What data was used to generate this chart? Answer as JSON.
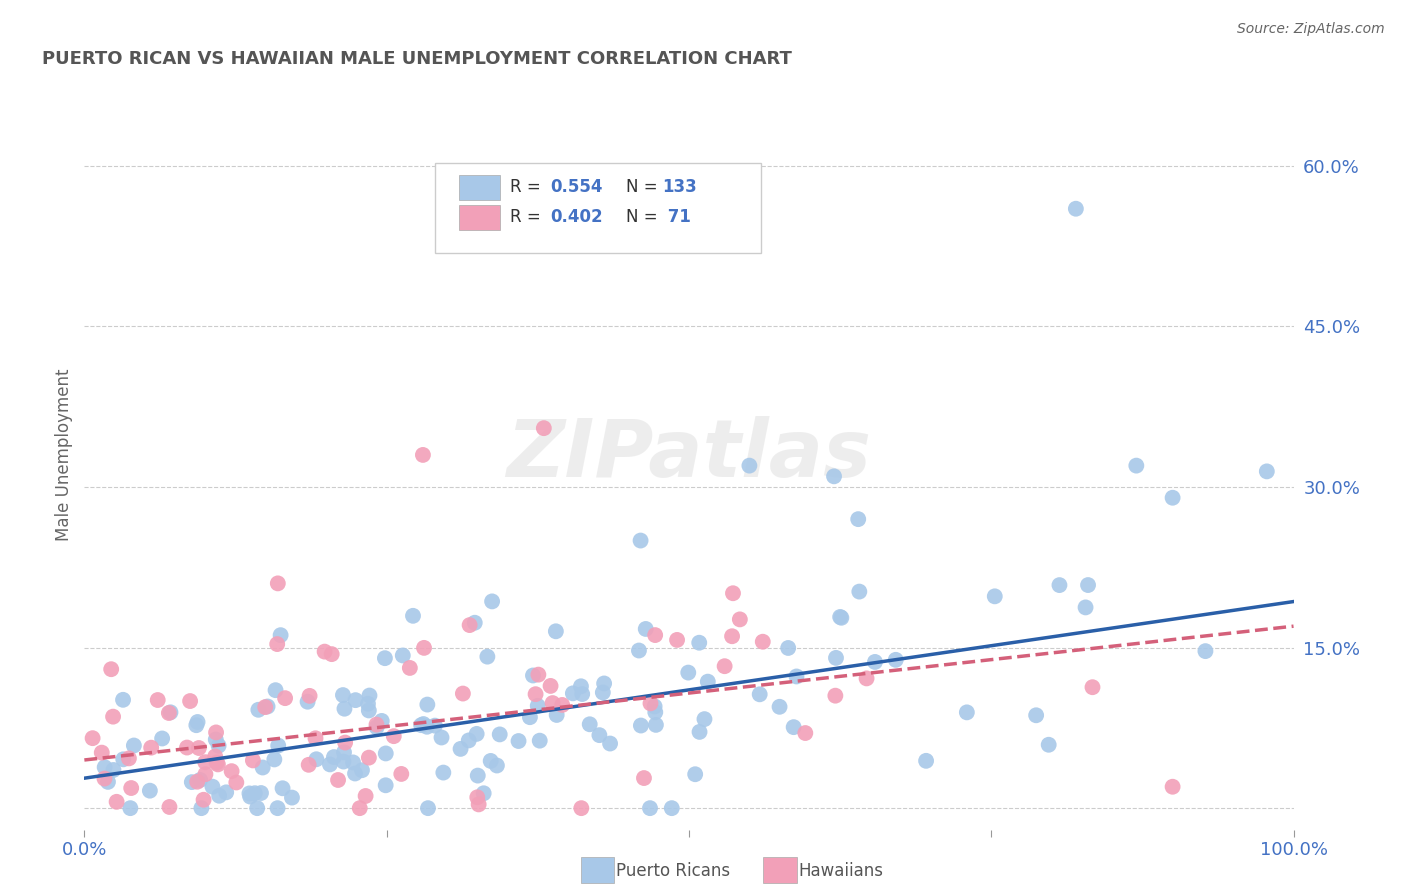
{
  "title": "PUERTO RICAN VS HAWAIIAN MALE UNEMPLOYMENT CORRELATION CHART",
  "source": "Source: ZipAtlas.com",
  "ylabel": "Male Unemployment",
  "xlim": [
    0,
    1.0
  ],
  "ylim": [
    -0.02,
    0.68
  ],
  "yticks": [
    0.0,
    0.15,
    0.3,
    0.45,
    0.6
  ],
  "ytick_labels": [
    "",
    "15.0%",
    "30.0%",
    "45.0%",
    "60.0%"
  ],
  "xticks": [
    0.0,
    0.25,
    0.5,
    0.75,
    1.0
  ],
  "xtick_labels": [
    "0.0%",
    "",
    "",
    "",
    "100.0%"
  ],
  "blue_R": 0.554,
  "blue_N": 133,
  "pink_R": 0.402,
  "pink_N": 71,
  "blue_color": "#A8C8E8",
  "pink_color": "#F2A0B8",
  "blue_line_color": "#2A5FA8",
  "pink_line_color": "#D4607A",
  "title_color": "#555555",
  "axis_label_color": "#4472C4",
  "background_color": "#FFFFFF",
  "grid_color": "#CCCCCC",
  "blue_seed": 42,
  "pink_seed": 7,
  "blue_line_intercept": 0.028,
  "blue_line_slope": 0.165,
  "pink_line_intercept": 0.045,
  "pink_line_slope": 0.125
}
